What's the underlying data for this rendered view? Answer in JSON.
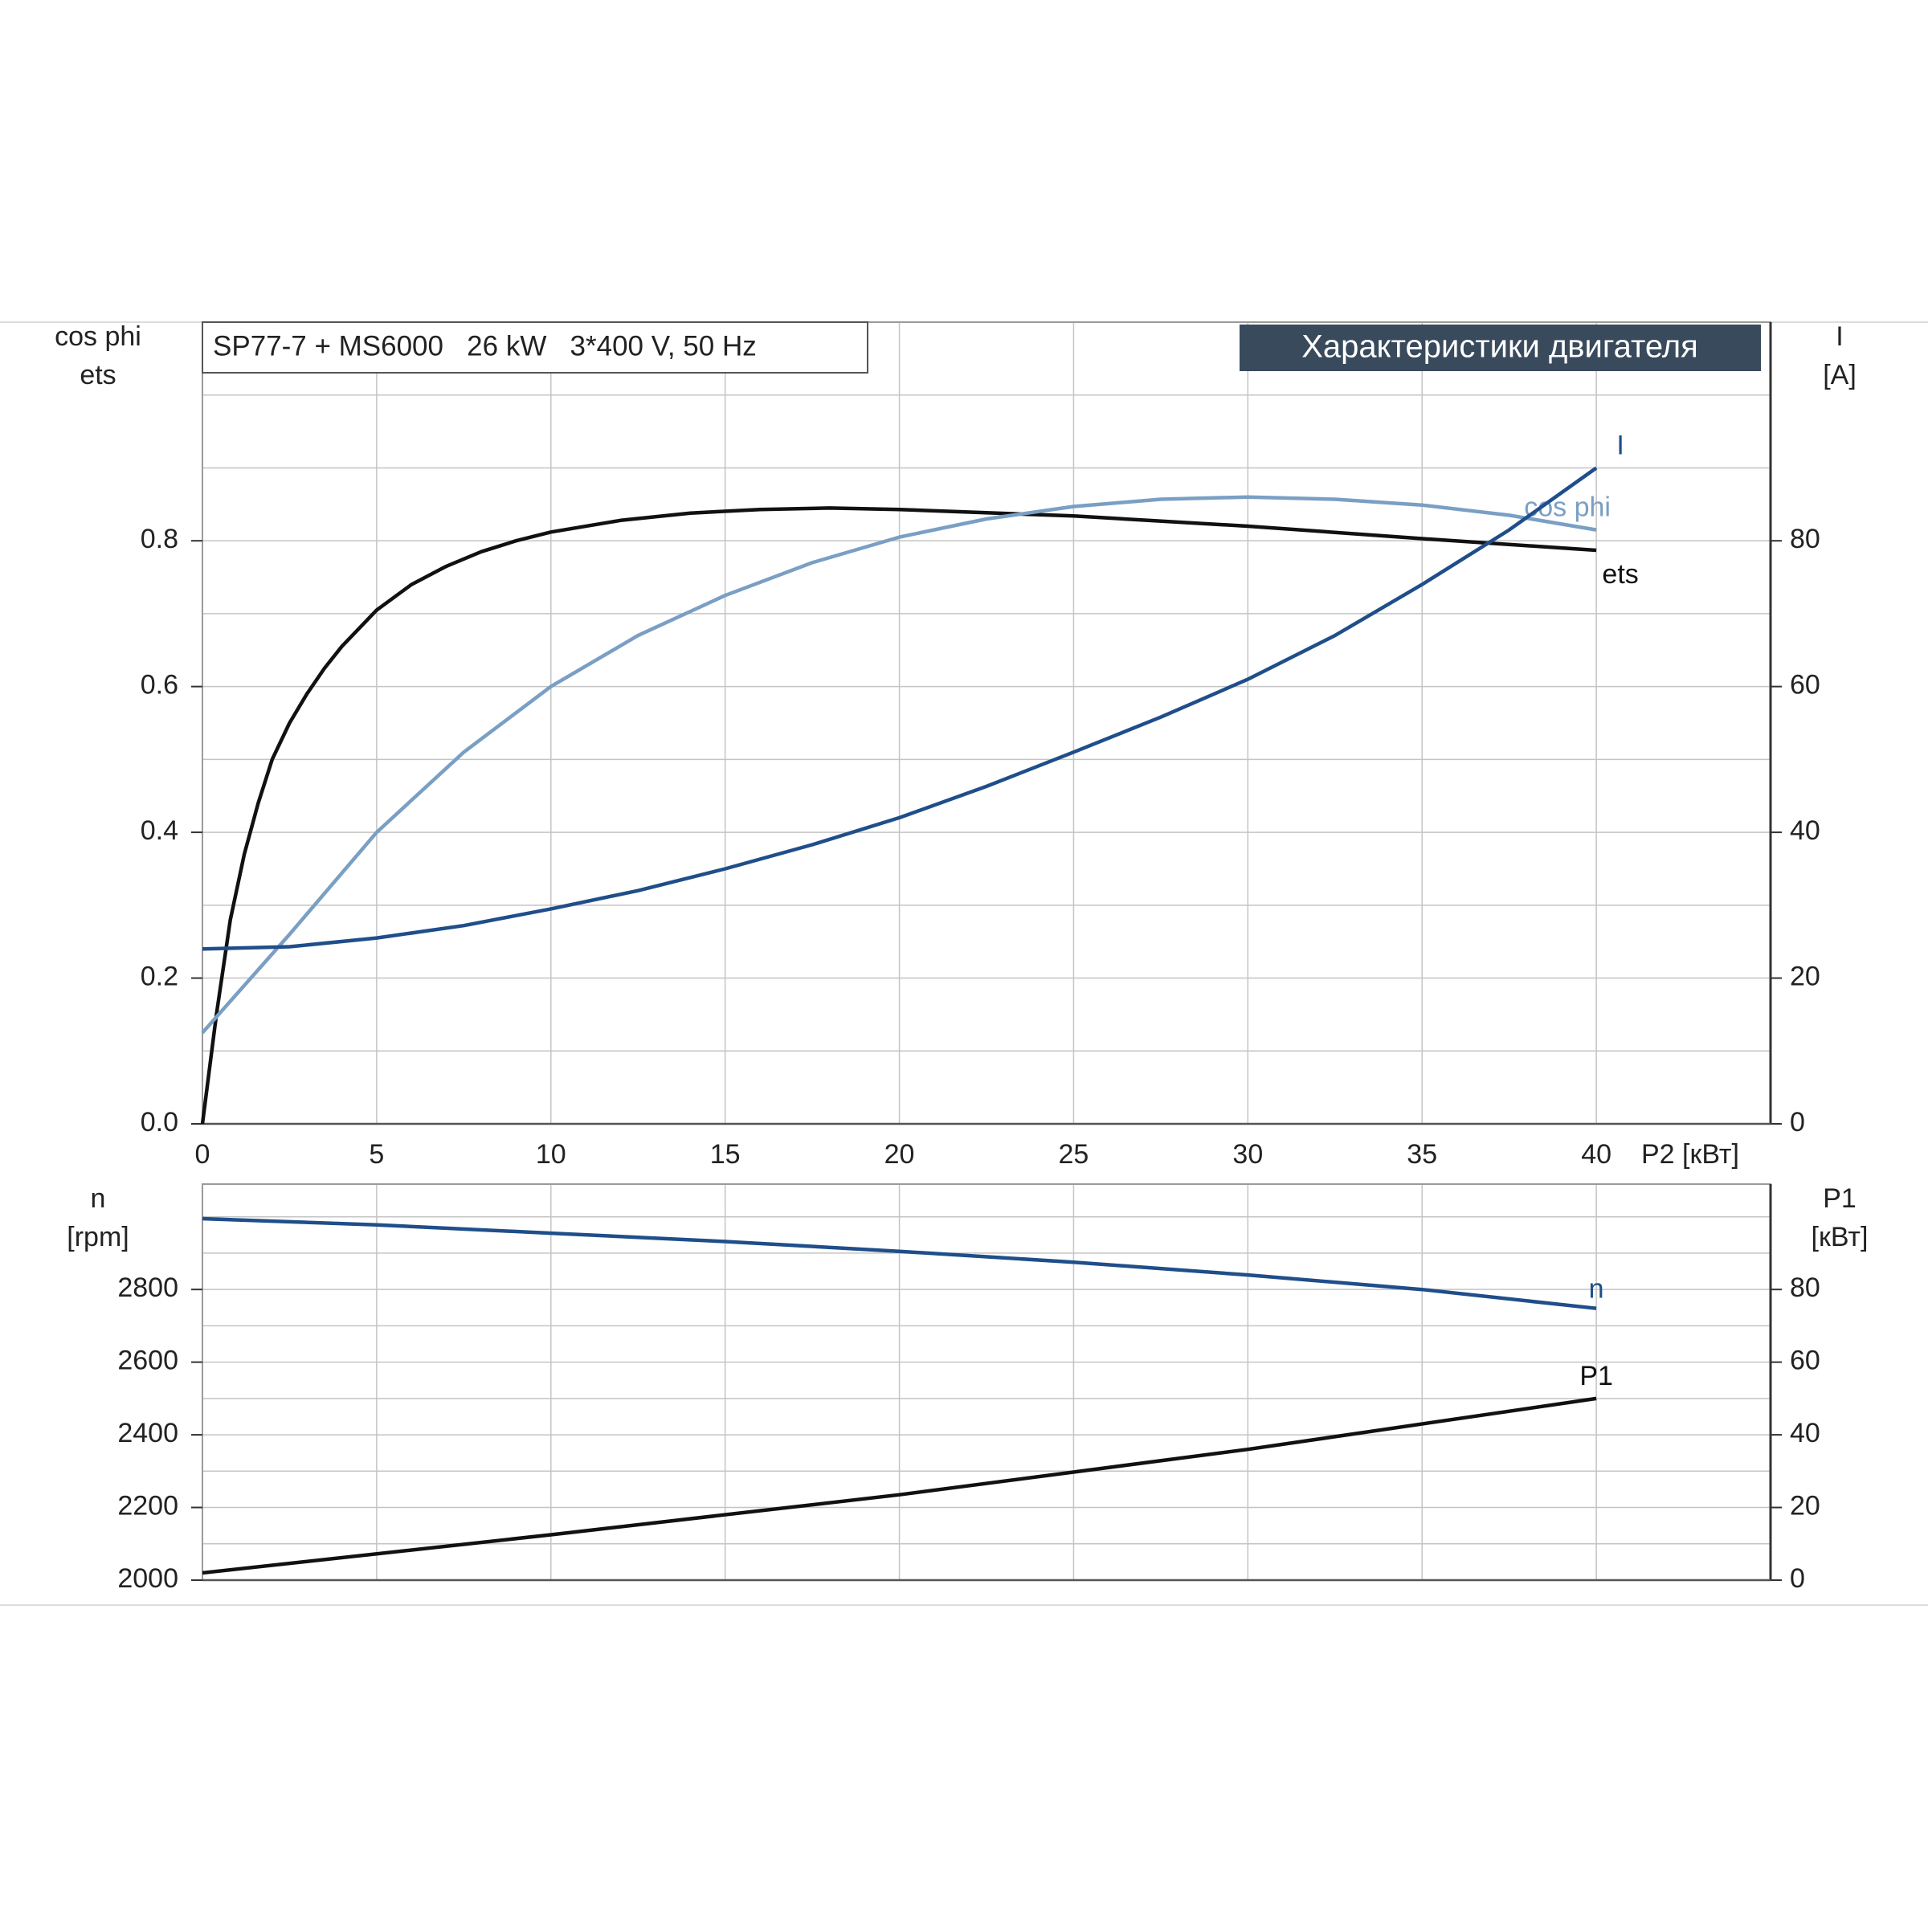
{
  "chart_data": [
    {
      "type": "line",
      "title": "SP77-7 + MS6000   26 kW   3*400 V, 50 Hz",
      "banner": "Характеристики двигателя",
      "x_label": "P2 [кВт]",
      "y_label": [
        "cos phi",
        "ets"
      ],
      "y2_label": [
        "I",
        "[A]"
      ],
      "xlim": [
        0,
        45
      ],
      "xticks": [
        0,
        5,
        10,
        15,
        20,
        25,
        30,
        35,
        40
      ],
      "ylim": [
        0,
        1.1
      ],
      "yticks": [
        {
          "value": 0,
          "label": "0.0"
        },
        0.2,
        0.4,
        0.6,
        0.8
      ],
      "ygrid": [
        0.1,
        0.3,
        0.5,
        0.7,
        0.9,
        1.0
      ],
      "y2lim": [
        0,
        110
      ],
      "y2ticks": [
        0,
        20,
        40,
        60,
        80
      ],
      "grid": true,
      "series": [
        {
          "name": "ets",
          "color": "#111111",
          "x": [
            0,
            0.4,
            0.8,
            1.2,
            1.6,
            2,
            2.5,
            3,
            3.5,
            4,
            4.5,
            5,
            6,
            7,
            8,
            9,
            10,
            12,
            14,
            16,
            18,
            20,
            25,
            30,
            35,
            40
          ],
          "values": [
            0,
            0.15,
            0.28,
            0.37,
            0.44,
            0.5,
            0.55,
            0.59,
            0.625,
            0.655,
            0.68,
            0.705,
            0.74,
            0.765,
            0.785,
            0.8,
            0.812,
            0.828,
            0.838,
            0.843,
            0.845,
            0.843,
            0.834,
            0.82,
            0.803,
            0.787
          ]
        },
        {
          "name": "cos phi",
          "color": "#7a9fc4",
          "x": [
            0,
            2.5,
            5,
            7.5,
            10,
            12.5,
            15,
            17.5,
            20,
            22.5,
            25,
            27.5,
            30,
            32.5,
            35,
            37.5,
            40
          ],
          "values": [
            0.125,
            0.26,
            0.4,
            0.51,
            0.6,
            0.67,
            0.725,
            0.77,
            0.805,
            0.83,
            0.847,
            0.857,
            0.86,
            0.857,
            0.849,
            0.835,
            0.815
          ]
        },
        {
          "name": "I",
          "color": "#1f4e8a",
          "axis": "y2",
          "x": [
            0,
            2.5,
            5,
            7.5,
            10,
            12.5,
            15,
            17.5,
            20,
            22.5,
            25,
            27.5,
            30,
            32.5,
            35,
            37.5,
            40
          ],
          "values": [
            24,
            24.3,
            25.5,
            27.2,
            29.5,
            32,
            35,
            38.3,
            42,
            46.3,
            51,
            55.8,
            61,
            67,
            74,
            81.5,
            90
          ]
        }
      ]
    },
    {
      "type": "line",
      "y_label": [
        "n",
        "[rpm]"
      ],
      "y2_label": [
        "P1",
        "[кВт]"
      ],
      "xlim": [
        0,
        45
      ],
      "xgrid": [
        5,
        10,
        15,
        20,
        25,
        30,
        35,
        40
      ],
      "ylim": [
        2000,
        3090
      ],
      "yticks": [
        2000,
        2200,
        2400,
        2600,
        2800
      ],
      "ygrid": [
        2100,
        2300,
        2500,
        2700,
        2900,
        3000
      ],
      "y2lim": [
        0,
        109
      ],
      "y2ticks": [
        0,
        20,
        40,
        60,
        80
      ],
      "grid": true,
      "series": [
        {
          "name": "n",
          "color": "#1f4e8a",
          "x": [
            0,
            5,
            10,
            15,
            20,
            25,
            30,
            35,
            40
          ],
          "values": [
            2995,
            2978,
            2955,
            2932,
            2905,
            2875,
            2840,
            2800,
            2748
          ]
        },
        {
          "name": "P1",
          "color": "#111111",
          "axis": "y2",
          "x": [
            0,
            10,
            20,
            30,
            40
          ],
          "values": [
            2,
            12.5,
            23.5,
            36,
            50
          ]
        }
      ]
    }
  ]
}
